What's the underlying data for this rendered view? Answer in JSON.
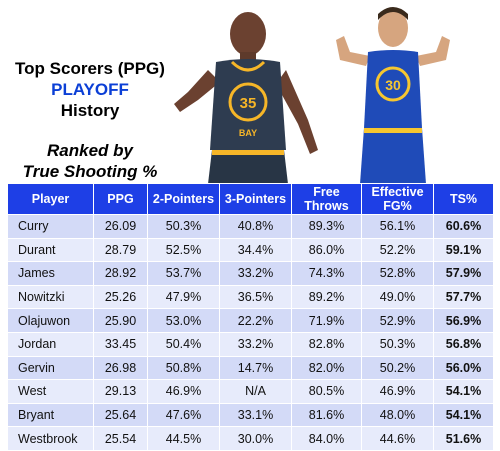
{
  "title": {
    "line1": "Top Scorers (PPG)",
    "line2": "PLAYOFF",
    "line3": "History"
  },
  "subtitle": {
    "line1": "Ranked by",
    "line2": "True Shooting %"
  },
  "colors": {
    "header_blue": "#1e3fe6",
    "playoff_blue": "#0b3fd6",
    "row_light": "#e7ebfb",
    "row_dark": "#d3daf7"
  },
  "photos": {
    "left": {
      "jersey_number": "35",
      "jersey_name": "BAY"
    },
    "right": {
      "jersey_number": "30"
    }
  },
  "table": {
    "headers": [
      "Player",
      "PPG",
      "2-Pointers",
      "3-Pointers",
      "Free Throws",
      "Effective FG%",
      "TS%"
    ],
    "rows": [
      [
        "Curry",
        "26.09",
        "50.3%",
        "40.8%",
        "89.3%",
        "56.1%",
        "60.6%"
      ],
      [
        "Durant",
        "28.79",
        "52.5%",
        "34.4%",
        "86.0%",
        "52.2%",
        "59.1%"
      ],
      [
        "James",
        "28.92",
        "53.7%",
        "33.2%",
        "74.3%",
        "52.8%",
        "57.9%"
      ],
      [
        "Nowitzki",
        "25.26",
        "47.9%",
        "36.5%",
        "89.2%",
        "49.0%",
        "57.7%"
      ],
      [
        "Olajuwon",
        "25.90",
        "53.0%",
        "22.2%",
        "71.9%",
        "52.9%",
        "56.9%"
      ],
      [
        "Jordan",
        "33.45",
        "50.4%",
        "33.2%",
        "82.8%",
        "50.3%",
        "56.8%"
      ],
      [
        "Gervin",
        "26.98",
        "50.8%",
        "14.7%",
        "82.0%",
        "50.2%",
        "56.0%"
      ],
      [
        "West",
        "29.13",
        "46.9%",
        "N/A",
        "80.5%",
        "46.9%",
        "54.1%"
      ],
      [
        "Bryant",
        "25.64",
        "47.6%",
        "33.1%",
        "81.6%",
        "48.0%",
        "54.1%"
      ],
      [
        "Westbrook",
        "25.54",
        "44.5%",
        "30.0%",
        "84.0%",
        "44.6%",
        "51.6%"
      ]
    ]
  }
}
